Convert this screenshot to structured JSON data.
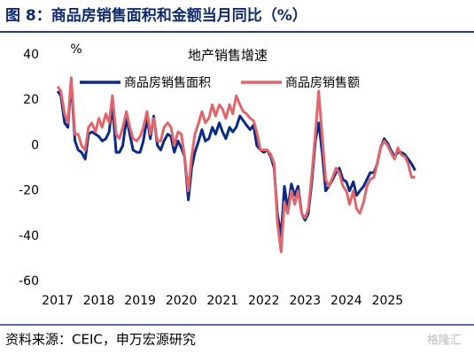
{
  "chart_data": {
    "type": "line",
    "title": "图 8：商品房销售面积和金额当月同比（%）",
    "subtitle": "地产销售增速",
    "y_label": "%",
    "source": "资料来源：CEIC，申万宏源研究",
    "watermark": "格隆汇",
    "x": [
      2017.0,
      2017.08,
      2017.17,
      2017.25,
      2017.33,
      2017.42,
      2017.5,
      2017.58,
      2017.67,
      2017.75,
      2017.83,
      2017.92,
      2018.0,
      2018.08,
      2018.17,
      2018.25,
      2018.33,
      2018.42,
      2018.5,
      2018.58,
      2018.67,
      2018.75,
      2018.83,
      2018.92,
      2019.0,
      2019.08,
      2019.17,
      2019.25,
      2019.33,
      2019.42,
      2019.5,
      2019.58,
      2019.67,
      2019.75,
      2019.83,
      2019.92,
      2020.0,
      2020.08,
      2020.17,
      2020.25,
      2020.33,
      2020.42,
      2020.5,
      2020.58,
      2020.67,
      2020.75,
      2020.83,
      2020.92,
      2021.0,
      2021.08,
      2021.17,
      2021.25,
      2021.33,
      2021.42,
      2021.5,
      2021.58,
      2021.67,
      2021.75,
      2021.83,
      2021.92,
      2022.0,
      2022.08,
      2022.17,
      2022.25,
      2022.33,
      2022.42,
      2022.5,
      2022.58,
      2022.67,
      2022.75,
      2022.83,
      2022.92,
      2023.0,
      2023.08,
      2023.17,
      2023.25,
      2023.33,
      2023.42,
      2023.5,
      2023.58,
      2023.67,
      2023.75,
      2023.83,
      2023.92,
      2024.0,
      2024.08,
      2024.17,
      2024.25,
      2024.33,
      2024.42,
      2024.5,
      2024.58,
      2024.67,
      2024.75,
      2024.83,
      2024.92,
      2025.0,
      2025.08,
      2025.17,
      2025.25,
      2025.33,
      2025.42,
      2025.5,
      2025.58,
      2025.67
    ],
    "series": [
      {
        "name": "商品房销售面积",
        "color": "#0b2a86",
        "values": [
          24,
          22,
          10,
          8,
          28,
          2,
          -2,
          -3,
          -6,
          5,
          6,
          5,
          4,
          2,
          3,
          6,
          18,
          -3,
          -3,
          0,
          12,
          5,
          -2,
          -3,
          -3,
          2,
          12,
          3,
          13,
          0,
          -2,
          2,
          5,
          4,
          -3,
          2,
          -1,
          -5,
          -24,
          -10,
          -3,
          2,
          7,
          2,
          3,
          8,
          5,
          10,
          6,
          3,
          8,
          6,
          8,
          13,
          11,
          9,
          7,
          9,
          0,
          -2,
          -3,
          -2,
          -5,
          -10,
          -30,
          -40,
          -18,
          -28,
          -17,
          -22,
          -18,
          -30,
          -33,
          -30,
          -15,
          2,
          10,
          -4,
          -20,
          -18,
          -15,
          -12,
          -10,
          -15,
          -16,
          -20,
          -16,
          -22,
          -20,
          -18,
          -15,
          -12,
          -12,
          -8,
          -1,
          3,
          1,
          -2,
          -5,
          -3,
          -3,
          -4,
          -6,
          -8,
          -11
        ]
      },
      {
        "name": "商品房销售额",
        "color": "#e0666b",
        "values": [
          26,
          24,
          14,
          10,
          30,
          5,
          5,
          0,
          -2,
          8,
          10,
          6,
          12,
          8,
          14,
          10,
          22,
          5,
          3,
          8,
          15,
          8,
          3,
          2,
          4,
          8,
          15,
          5,
          12,
          2,
          2,
          8,
          10,
          8,
          0,
          6,
          5,
          -5,
          -20,
          -5,
          5,
          10,
          15,
          10,
          12,
          18,
          13,
          18,
          16,
          12,
          18,
          14,
          22,
          18,
          15,
          14,
          12,
          11,
          6,
          -2,
          -2,
          -2,
          -4,
          -8,
          -34,
          -47,
          -25,
          -30,
          -20,
          -26,
          -20,
          -30,
          -32,
          -28,
          -12,
          5,
          24,
          3,
          -15,
          -18,
          -14,
          -10,
          -12,
          -18,
          -20,
          -26,
          -20,
          -28,
          -30,
          -25,
          -18,
          -15,
          -14,
          -8,
          -1,
          2,
          0,
          -3,
          -6,
          -1,
          -4,
          -5,
          -8,
          -14,
          -14
        ]
      }
    ],
    "xlim": [
      2017,
      2025.7
    ],
    "xticks": [
      2017,
      2018,
      2019,
      2020,
      2021,
      2022,
      2023,
      2024,
      2025
    ],
    "ylim": [
      -60,
      40
    ],
    "yticks": [
      40,
      20,
      0,
      -20,
      -40,
      -60
    ],
    "grid": false,
    "legend": "top"
  }
}
